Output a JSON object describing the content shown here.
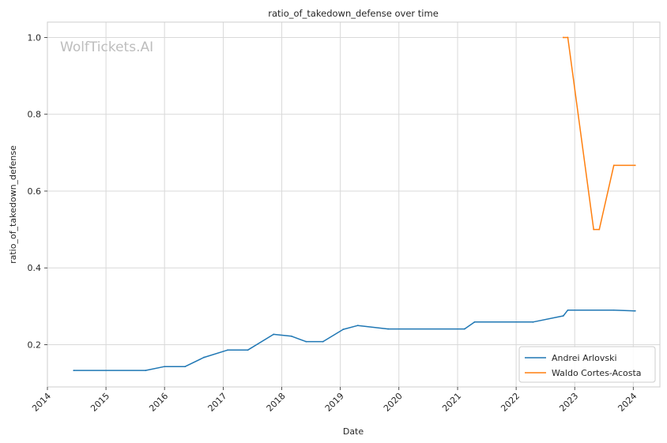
{
  "chart_data": {
    "type": "line",
    "title": "ratio_of_takedown_defense over time",
    "xlabel": "Date",
    "ylabel": "ratio_of_takedown_defense",
    "watermark": "WolfTickets.AI",
    "xlim": [
      "2014-01-01",
      "2024-06-15"
    ],
    "ylim": [
      0.09,
      1.04
    ],
    "x_ticks": [
      "2014",
      "2015",
      "2016",
      "2017",
      "2018",
      "2019",
      "2020",
      "2021",
      "2022",
      "2023",
      "2024"
    ],
    "y_ticks": [
      "0.2",
      "0.4",
      "0.6",
      "0.8",
      "1.0"
    ],
    "grid": true,
    "legend_position": "lower-right",
    "series": [
      {
        "name": "Andrei Arlovski",
        "color": "#1f77b4",
        "points": [
          [
            "2014-06-14",
            0.133
          ],
          [
            "2015-09-05",
            0.133
          ],
          [
            "2016-01-01",
            0.143
          ],
          [
            "2016-05-08",
            0.143
          ],
          [
            "2016-09-03",
            0.167
          ],
          [
            "2017-01-28",
            0.186
          ],
          [
            "2017-06-03",
            0.186
          ],
          [
            "2017-11-11",
            0.227
          ],
          [
            "2018-03-03",
            0.222
          ],
          [
            "2018-06-01",
            0.208
          ],
          [
            "2018-09-15",
            0.208
          ],
          [
            "2019-01-19",
            0.24
          ],
          [
            "2019-04-20",
            0.25
          ],
          [
            "2019-10-26",
            0.241
          ],
          [
            "2021-02-13",
            0.241
          ],
          [
            "2021-04-17",
            0.259
          ],
          [
            "2022-04-16",
            0.259
          ],
          [
            "2022-10-22",
            0.275
          ],
          [
            "2022-11-19",
            0.29
          ],
          [
            "2023-09-02",
            0.29
          ],
          [
            "2024-01-13",
            0.288
          ]
        ]
      },
      {
        "name": "Waldo Cortes-Acosta",
        "color": "#ff7f0e",
        "points": [
          [
            "2022-10-22",
            1.0
          ],
          [
            "2022-11-19",
            1.0
          ],
          [
            "2023-04-29",
            0.5
          ],
          [
            "2023-06-03",
            0.5
          ],
          [
            "2023-09-02",
            0.667
          ],
          [
            "2024-01-13",
            0.667
          ]
        ]
      }
    ]
  }
}
